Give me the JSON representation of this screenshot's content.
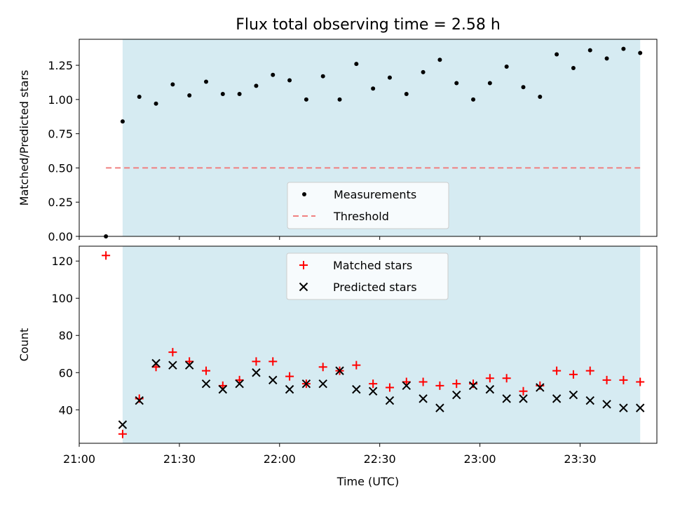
{
  "title": "Flux total observing time = 2.58 h",
  "colors": {
    "shade": "#add8e6",
    "threshold": "#f08080",
    "matched": "#ff0000",
    "predicted": "#000000",
    "measurements": "#000000"
  },
  "chart_data": [
    {
      "type": "scatter",
      "panel": "top",
      "ylabel": "Matched/Predicted stars",
      "xlabel": "",
      "xlim": [
        "21:00",
        "23:53"
      ],
      "ylim": [
        0,
        1.44
      ],
      "yticks": [
        0.0,
        0.25,
        0.5,
        0.75,
        1.0,
        1.25
      ],
      "ytick_labels": [
        "0.00",
        "0.25",
        "0.50",
        "0.75",
        "1.00",
        "1.25"
      ],
      "grid": false,
      "shaded_span": [
        "21:13",
        "23:48"
      ],
      "legend_position": "lower-center",
      "series": [
        {
          "name": "Measurements",
          "marker": "dot",
          "x": [
            "21:08",
            "21:13",
            "21:18",
            "21:23",
            "21:28",
            "21:33",
            "21:38",
            "21:43",
            "21:48",
            "21:53",
            "21:58",
            "22:03",
            "22:08",
            "22:13",
            "22:18",
            "22:23",
            "22:28",
            "22:33",
            "22:38",
            "22:43",
            "22:48",
            "22:53",
            "22:58",
            "23:03",
            "23:08",
            "23:13",
            "23:18",
            "23:23",
            "23:28",
            "23:33",
            "23:38",
            "23:43",
            "23:48"
          ],
          "y": [
            0.0,
            0.84,
            1.02,
            0.97,
            1.11,
            1.03,
            1.13,
            1.04,
            1.04,
            1.1,
            1.18,
            1.14,
            1.0,
            1.17,
            1.0,
            1.26,
            1.08,
            1.16,
            1.04,
            1.2,
            1.29,
            1.12,
            1.0,
            1.12,
            1.24,
            1.09,
            1.02,
            1.33,
            1.23,
            1.36,
            1.3,
            1.37,
            1.34
          ]
        },
        {
          "name": "Threshold",
          "style": "dashed-line",
          "x": [
            "21:08",
            "23:48"
          ],
          "y": [
            0.5,
            0.5
          ]
        }
      ]
    },
    {
      "type": "scatter",
      "panel": "bottom",
      "ylabel": "Count",
      "xlabel": "Time (UTC)",
      "xlim": [
        "21:00",
        "23:53"
      ],
      "ylim": [
        22,
        128
      ],
      "yticks": [
        40,
        60,
        80,
        100,
        120
      ],
      "ytick_labels": [
        "40",
        "60",
        "80",
        "100",
        "120"
      ],
      "xticks": [
        "21:00",
        "21:30",
        "22:00",
        "22:30",
        "23:00",
        "23:30"
      ],
      "xtick_labels": [
        "21:00",
        "21:30",
        "22:00",
        "22:30",
        "23:00",
        "23:30"
      ],
      "grid": false,
      "shaded_span": [
        "21:13",
        "23:48"
      ],
      "legend_position": "upper-center",
      "series": [
        {
          "name": "Matched stars",
          "marker": "plus",
          "x": [
            "21:08",
            "21:13",
            "21:18",
            "21:23",
            "21:28",
            "21:33",
            "21:38",
            "21:43",
            "21:48",
            "21:53",
            "21:58",
            "22:03",
            "22:08",
            "22:13",
            "22:18",
            "22:23",
            "22:28",
            "22:33",
            "22:38",
            "22:43",
            "22:48",
            "22:53",
            "22:58",
            "23:03",
            "23:08",
            "23:13",
            "23:18",
            "23:23",
            "23:28",
            "23:33",
            "23:38",
            "23:43",
            "23:48"
          ],
          "y": [
            123,
            27,
            46,
            63,
            71,
            66,
            61,
            53,
            56,
            66,
            66,
            58,
            54,
            63,
            61,
            64,
            54,
            52,
            55,
            55,
            53,
            54,
            54,
            57,
            57,
            50,
            53,
            61,
            59,
            61,
            56,
            56,
            55
          ]
        },
        {
          "name": "Predicted stars",
          "marker": "x",
          "x": [
            "21:13",
            "21:18",
            "21:23",
            "21:28",
            "21:33",
            "21:38",
            "21:43",
            "21:48",
            "21:53",
            "21:58",
            "22:03",
            "22:08",
            "22:13",
            "22:18",
            "22:23",
            "22:28",
            "22:33",
            "22:38",
            "22:43",
            "22:48",
            "22:53",
            "22:58",
            "23:03",
            "23:08",
            "23:13",
            "23:18",
            "23:23",
            "23:28",
            "23:33",
            "23:38",
            "23:43",
            "23:48"
          ],
          "y": [
            32,
            45,
            65,
            64,
            64,
            54,
            51,
            54,
            60,
            56,
            51,
            54,
            54,
            61,
            51,
            50,
            45,
            53,
            46,
            41,
            48,
            53,
            51,
            46,
            46,
            52,
            46,
            48,
            45,
            43,
            41,
            41
          ]
        }
      ]
    }
  ]
}
